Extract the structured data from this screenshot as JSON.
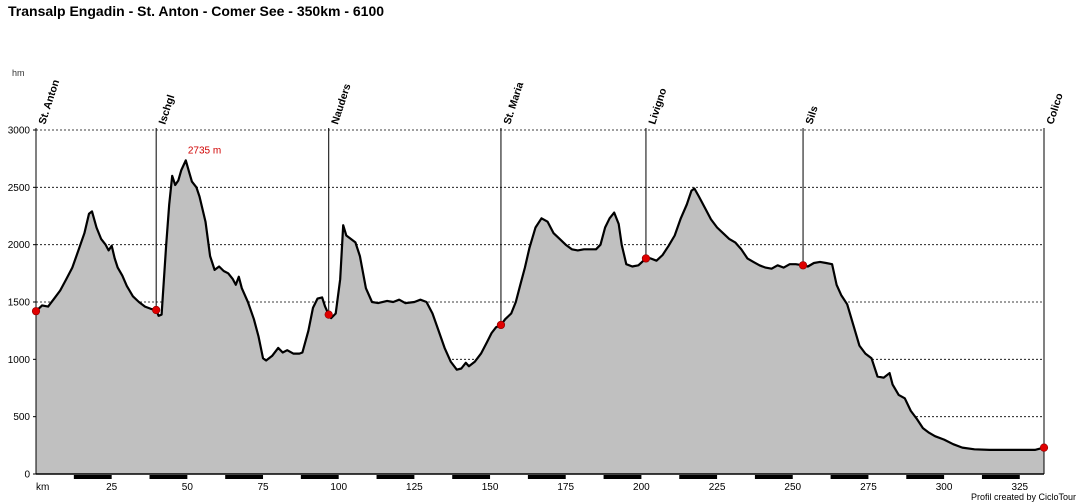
{
  "title": "Transalp Engadin - St. Anton - Comer See - 350km - 6100",
  "credit": "Profil created by CicloTour",
  "chart_data": {
    "type": "area",
    "title": "Transalp Engadin - St. Anton - Comer See - 350km - 6100",
    "y_unit": "hm",
    "x_unit": "km",
    "xlim": [
      0,
      333
    ],
    "ylim": [
      0,
      3000
    ],
    "x_ticks": [
      25,
      50,
      75,
      100,
      125,
      150,
      175,
      200,
      225,
      250,
      275,
      300,
      325
    ],
    "y_ticks": [
      0,
      500,
      1000,
      1500,
      2000,
      2500,
      3000
    ],
    "grid": "horizontal dashed",
    "fill_color": "#c0c0c0",
    "line_color": "#000000",
    "marker_color": "#e00000",
    "annotation": {
      "x": 49.5,
      "y": 2735,
      "label": "2735 m"
    },
    "waypoints": [
      {
        "name": "St. Anton",
        "x": 0,
        "y": 1420
      },
      {
        "name": "Ischgl",
        "x": 39.7,
        "y": 1430
      },
      {
        "name": "Nauders",
        "x": 96.7,
        "y": 1390
      },
      {
        "name": "St. Maria",
        "x": 153.6,
        "y": 1300
      },
      {
        "name": "Livigno",
        "x": 201.5,
        "y": 1880
      },
      {
        "name": "Sils",
        "x": 253.4,
        "y": 1820
      },
      {
        "name": "Colico",
        "x": 333,
        "y": 230
      }
    ],
    "profile": [
      [
        0,
        1420
      ],
      [
        2,
        1470
      ],
      [
        4,
        1460
      ],
      [
        6,
        1530
      ],
      [
        8,
        1600
      ],
      [
        10,
        1700
      ],
      [
        12,
        1800
      ],
      [
        14,
        1950
      ],
      [
        16,
        2100
      ],
      [
        17.5,
        2270
      ],
      [
        18.5,
        2290
      ],
      [
        20,
        2150
      ],
      [
        21.5,
        2050
      ],
      [
        23,
        2000
      ],
      [
        24,
        1950
      ],
      [
        25,
        1990
      ],
      [
        26,
        1880
      ],
      [
        27,
        1800
      ],
      [
        28.5,
        1730
      ],
      [
        30,
        1640
      ],
      [
        32,
        1550
      ],
      [
        34,
        1500
      ],
      [
        36,
        1460
      ],
      [
        38,
        1440
      ],
      [
        39.7,
        1430
      ],
      [
        40.5,
        1380
      ],
      [
        41.5,
        1390
      ],
      [
        43,
        2000
      ],
      [
        44,
        2350
      ],
      [
        45,
        2600
      ],
      [
        46,
        2520
      ],
      [
        47,
        2560
      ],
      [
        48,
        2650
      ],
      [
        49.5,
        2735
      ],
      [
        50.5,
        2640
      ],
      [
        51.5,
        2550
      ],
      [
        53,
        2500
      ],
      [
        54,
        2420
      ],
      [
        56,
        2200
      ],
      [
        57.5,
        1900
      ],
      [
        59,
        1780
      ],
      [
        60.5,
        1810
      ],
      [
        62,
        1770
      ],
      [
        63.5,
        1750
      ],
      [
        65,
        1700
      ],
      [
        66,
        1650
      ],
      [
        67,
        1720
      ],
      [
        68,
        1620
      ],
      [
        70,
        1500
      ],
      [
        72,
        1350
      ],
      [
        73.5,
        1200
      ],
      [
        75,
        1010
      ],
      [
        76,
        990
      ],
      [
        78,
        1030
      ],
      [
        80,
        1100
      ],
      [
        81.5,
        1060
      ],
      [
        83,
        1080
      ],
      [
        85,
        1050
      ],
      [
        87,
        1050
      ],
      [
        88,
        1060
      ],
      [
        90,
        1250
      ],
      [
        91.5,
        1450
      ],
      [
        93,
        1530
      ],
      [
        94.5,
        1540
      ],
      [
        95.5,
        1460
      ],
      [
        96.7,
        1390
      ],
      [
        97.5,
        1360
      ],
      [
        99,
        1400
      ],
      [
        100.5,
        1700
      ],
      [
        101.5,
        2170
      ],
      [
        102.5,
        2080
      ],
      [
        104,
        2050
      ],
      [
        105.5,
        2020
      ],
      [
        107,
        1900
      ],
      [
        109,
        1620
      ],
      [
        111,
        1500
      ],
      [
        113,
        1490
      ],
      [
        116,
        1510
      ],
      [
        118,
        1500
      ],
      [
        120,
        1520
      ],
      [
        122,
        1490
      ],
      [
        125,
        1500
      ],
      [
        127,
        1520
      ],
      [
        129,
        1500
      ],
      [
        131,
        1400
      ],
      [
        133,
        1250
      ],
      [
        135,
        1100
      ],
      [
        137,
        980
      ],
      [
        139,
        910
      ],
      [
        140.5,
        920
      ],
      [
        142,
        970
      ],
      [
        143,
        940
      ],
      [
        145,
        980
      ],
      [
        147,
        1050
      ],
      [
        149,
        1150
      ],
      [
        150.5,
        1230
      ],
      [
        152,
        1280
      ],
      [
        153.6,
        1300
      ],
      [
        155,
        1350
      ],
      [
        157,
        1400
      ],
      [
        158.5,
        1500
      ],
      [
        160,
        1650
      ],
      [
        161.5,
        1800
      ],
      [
        163,
        1970
      ],
      [
        165,
        2150
      ],
      [
        167,
        2230
      ],
      [
        169,
        2200
      ],
      [
        171,
        2100
      ],
      [
        173,
        2050
      ],
      [
        175,
        2000
      ],
      [
        177,
        1960
      ],
      [
        179,
        1950
      ],
      [
        181,
        1960
      ],
      [
        183,
        1960
      ],
      [
        185,
        1960
      ],
      [
        186.5,
        2000
      ],
      [
        188,
        2150
      ],
      [
        189.5,
        2230
      ],
      [
        191,
        2280
      ],
      [
        192.5,
        2180
      ],
      [
        193.5,
        2000
      ],
      [
        195,
        1830
      ],
      [
        197,
        1810
      ],
      [
        199,
        1820
      ],
      [
        201.5,
        1880
      ],
      [
        203,
        1880
      ],
      [
        205,
        1860
      ],
      [
        207,
        1910
      ],
      [
        209,
        1990
      ],
      [
        211,
        2080
      ],
      [
        213,
        2230
      ],
      [
        215,
        2350
      ],
      [
        216.5,
        2470
      ],
      [
        217.5,
        2490
      ],
      [
        219,
        2420
      ],
      [
        221,
        2320
      ],
      [
        223,
        2220
      ],
      [
        225,
        2150
      ],
      [
        227,
        2100
      ],
      [
        229,
        2050
      ],
      [
        231,
        2020
      ],
      [
        233,
        1960
      ],
      [
        235,
        1880
      ],
      [
        237,
        1850
      ],
      [
        239,
        1820
      ],
      [
        241,
        1800
      ],
      [
        243,
        1790
      ],
      [
        245,
        1820
      ],
      [
        247,
        1800
      ],
      [
        249,
        1830
      ],
      [
        251,
        1830
      ],
      [
        253.4,
        1820
      ],
      [
        255,
        1810
      ],
      [
        257,
        1840
      ],
      [
        259,
        1850
      ],
      [
        261,
        1840
      ],
      [
        263,
        1830
      ],
      [
        264.5,
        1650
      ],
      [
        266,
        1560
      ],
      [
        268,
        1480
      ],
      [
        270,
        1300
      ],
      [
        272,
        1120
      ],
      [
        274,
        1050
      ],
      [
        276,
        1010
      ],
      [
        278,
        850
      ],
      [
        280,
        840
      ],
      [
        282,
        880
      ],
      [
        283,
        780
      ],
      [
        285,
        690
      ],
      [
        287,
        660
      ],
      [
        289,
        550
      ],
      [
        291,
        480
      ],
      [
        293,
        400
      ],
      [
        295,
        360
      ],
      [
        297,
        330
      ],
      [
        300,
        300
      ],
      [
        303,
        260
      ],
      [
        306,
        230
      ],
      [
        310,
        215
      ],
      [
        315,
        210
      ],
      [
        320,
        210
      ],
      [
        325,
        210
      ],
      [
        330,
        210
      ],
      [
        333,
        230
      ]
    ]
  }
}
